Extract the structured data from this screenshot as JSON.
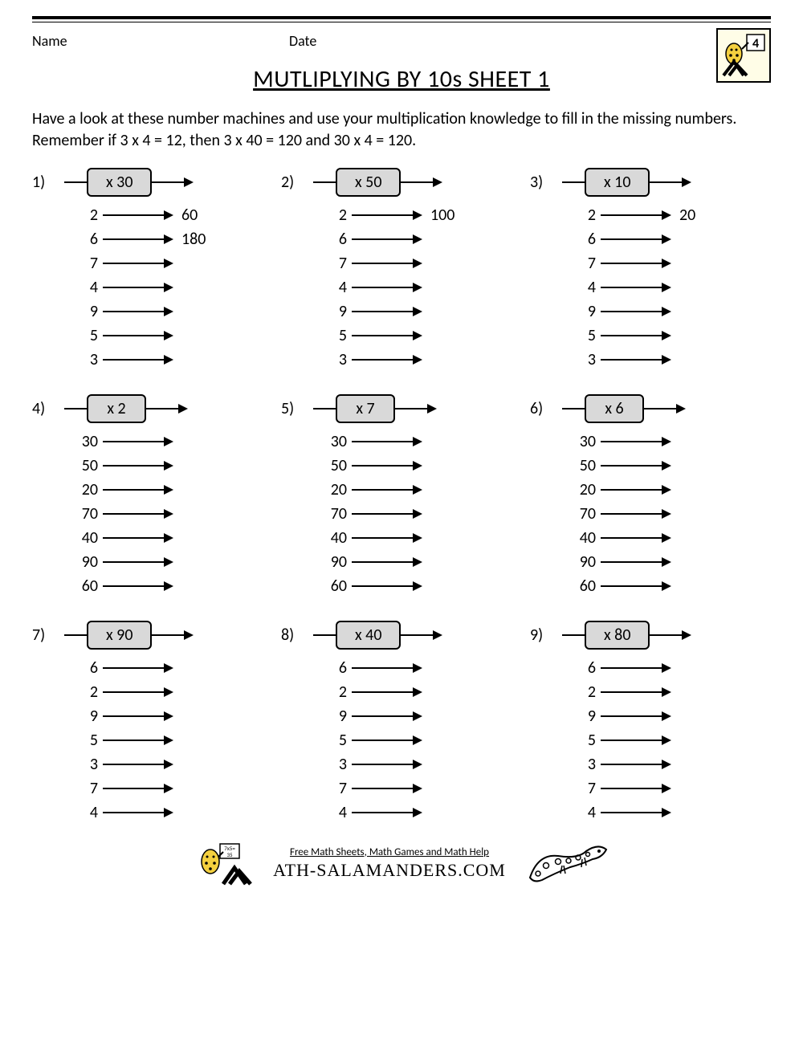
{
  "header": {
    "name_label": "Name",
    "date_label": "Date",
    "grade_badge": "4"
  },
  "title": "MUTLIPLYING BY 10s SHEET 1",
  "instructions": "Have a look at these number machines and use your multiplication knowledge to fill in the missing numbers. Remember if 3 x 4 = 12, then 3 x 40 = 120 and 30 x 4 = 120.",
  "problems": [
    {
      "num": "1)",
      "op": "x 30",
      "rows": [
        {
          "in": "2",
          "out": "60"
        },
        {
          "in": "6",
          "out": "180"
        },
        {
          "in": "7",
          "out": ""
        },
        {
          "in": "4",
          "out": ""
        },
        {
          "in": "9",
          "out": ""
        },
        {
          "in": "5",
          "out": ""
        },
        {
          "in": "3",
          "out": ""
        }
      ]
    },
    {
      "num": "2)",
      "op": "x 50",
      "rows": [
        {
          "in": "2",
          "out": "100"
        },
        {
          "in": "6",
          "out": ""
        },
        {
          "in": "7",
          "out": ""
        },
        {
          "in": "4",
          "out": ""
        },
        {
          "in": "9",
          "out": ""
        },
        {
          "in": "5",
          "out": ""
        },
        {
          "in": "3",
          "out": ""
        }
      ]
    },
    {
      "num": "3)",
      "op": "x 10",
      "rows": [
        {
          "in": "2",
          "out": "20"
        },
        {
          "in": "6",
          "out": ""
        },
        {
          "in": "7",
          "out": ""
        },
        {
          "in": "4",
          "out": ""
        },
        {
          "in": "9",
          "out": ""
        },
        {
          "in": "5",
          "out": ""
        },
        {
          "in": "3",
          "out": ""
        }
      ]
    },
    {
      "num": "4)",
      "op": "x 2",
      "rows": [
        {
          "in": "30",
          "out": ""
        },
        {
          "in": "50",
          "out": ""
        },
        {
          "in": "20",
          "out": ""
        },
        {
          "in": "70",
          "out": ""
        },
        {
          "in": "40",
          "out": ""
        },
        {
          "in": "90",
          "out": ""
        },
        {
          "in": "60",
          "out": ""
        }
      ]
    },
    {
      "num": "5)",
      "op": "x 7",
      "rows": [
        {
          "in": "30",
          "out": ""
        },
        {
          "in": "50",
          "out": ""
        },
        {
          "in": "20",
          "out": ""
        },
        {
          "in": "70",
          "out": ""
        },
        {
          "in": "40",
          "out": ""
        },
        {
          "in": "90",
          "out": ""
        },
        {
          "in": "60",
          "out": ""
        }
      ]
    },
    {
      "num": "6)",
      "op": "x 6",
      "rows": [
        {
          "in": "30",
          "out": ""
        },
        {
          "in": "50",
          "out": ""
        },
        {
          "in": "20",
          "out": ""
        },
        {
          "in": "70",
          "out": ""
        },
        {
          "in": "40",
          "out": ""
        },
        {
          "in": "90",
          "out": ""
        },
        {
          "in": "60",
          "out": ""
        }
      ]
    },
    {
      "num": "7)",
      "op": "x 90",
      "rows": [
        {
          "in": "6",
          "out": ""
        },
        {
          "in": "2",
          "out": ""
        },
        {
          "in": "9",
          "out": ""
        },
        {
          "in": "5",
          "out": ""
        },
        {
          "in": "3",
          "out": ""
        },
        {
          "in": "7",
          "out": ""
        },
        {
          "in": "4",
          "out": ""
        }
      ]
    },
    {
      "num": "8)",
      "op": "x 40",
      "rows": [
        {
          "in": "6",
          "out": ""
        },
        {
          "in": "2",
          "out": ""
        },
        {
          "in": "9",
          "out": ""
        },
        {
          "in": "5",
          "out": ""
        },
        {
          "in": "3",
          "out": ""
        },
        {
          "in": "7",
          "out": ""
        },
        {
          "in": "4",
          "out": ""
        }
      ]
    },
    {
      "num": "9)",
      "op": "x 80",
      "rows": [
        {
          "in": "6",
          "out": ""
        },
        {
          "in": "2",
          "out": ""
        },
        {
          "in": "9",
          "out": ""
        },
        {
          "in": "5",
          "out": ""
        },
        {
          "in": "3",
          "out": ""
        },
        {
          "in": "7",
          "out": ""
        },
        {
          "in": "4",
          "out": ""
        }
      ]
    }
  ],
  "footer": {
    "tagline": "Free Math Sheets, Math Games and Math Help",
    "brand": "ATH-SALAMANDERS.COM"
  },
  "colors": {
    "box_fill": "#d9d9d9",
    "line": "#000000",
    "logo_bg": "#fffde7",
    "salamander": "#f4d03f"
  }
}
